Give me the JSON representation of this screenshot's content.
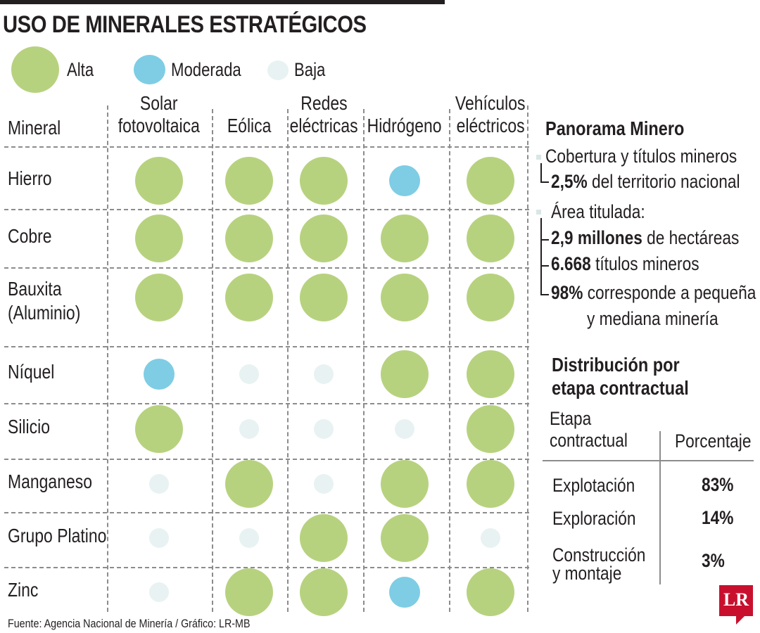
{
  "title": "USO DE MINERALES ESTRATÉGICOS",
  "colors": {
    "alta": "#b7d27f",
    "moderada": "#7ecde4",
    "baja": "#e8f2f2",
    "text": "#231f20",
    "logo": "#c8102e"
  },
  "legend": [
    {
      "level": "alta",
      "label": "Alta"
    },
    {
      "level": "moderada",
      "label": "Moderada"
    },
    {
      "level": "baja",
      "label": "Baja"
    }
  ],
  "table": {
    "mineral_header": "Mineral",
    "columns": [
      {
        "line1": "Solar",
        "line2": "fotovoltaica"
      },
      {
        "line1": "",
        "line2": "Eólica"
      },
      {
        "line1": "Redes",
        "line2": "eléctricas"
      },
      {
        "line1": "",
        "line2": "Hidrógeno"
      },
      {
        "line1": "Vehículos",
        "line2": "eléctricos"
      }
    ],
    "rows": [
      {
        "mineral": "Hierro",
        "mineral2": "",
        "levels": [
          "alta",
          "alta",
          "alta",
          "moderada",
          "alta"
        ]
      },
      {
        "mineral": "Cobre",
        "mineral2": "",
        "levels": [
          "alta",
          "alta",
          "alta",
          "alta",
          "alta"
        ]
      },
      {
        "mineral": "Bauxita",
        "mineral2": "(Aluminio)",
        "levels": [
          "alta",
          "alta",
          "alta",
          "alta",
          "alta"
        ]
      },
      {
        "mineral": "Níquel",
        "mineral2": "",
        "levels": [
          "moderada",
          "baja",
          "baja",
          "alta",
          "alta"
        ]
      },
      {
        "mineral": "Silicio",
        "mineral2": "",
        "levels": [
          "alta",
          "baja",
          "baja",
          "baja",
          "alta"
        ]
      },
      {
        "mineral": "Manganeso",
        "mineral2": "",
        "levels": [
          "baja",
          "alta",
          "baja",
          "alta",
          "alta"
        ]
      },
      {
        "mineral": "Grupo Platino",
        "mineral2": "",
        "levels": [
          "baja",
          "baja",
          "alta",
          "alta",
          "baja"
        ]
      },
      {
        "mineral": "Zinc",
        "mineral2": "",
        "levels": [
          "baja",
          "alta",
          "alta",
          "moderada",
          "alta"
        ]
      }
    ]
  },
  "panorama": {
    "title": "Panorama Minero",
    "cobertura_label": "Cobertura y títulos mineros",
    "cobertura_value": "2,5%",
    "cobertura_rest": "del territorio nacional",
    "area_label": "Área titulada:",
    "hectareas_value": "2,9 millones",
    "hectareas_rest": "de hectáreas",
    "titulos_value": "6.668",
    "titulos_rest": "títulos mineros",
    "pequena_value": "98%",
    "pequena_rest": "corresponde a pequeña",
    "pequena_rest2": "y mediana minería"
  },
  "distribution": {
    "title_line1": "Distribución por",
    "title_line2": "etapa contractual",
    "header_stage_line1": "Etapa",
    "header_stage_line2": "contractual",
    "header_pct": "Porcentaje",
    "rows": [
      {
        "stage": "Explotación",
        "stage2": "",
        "pct": "83%"
      },
      {
        "stage": "Exploración",
        "stage2": "",
        "pct": "14%"
      },
      {
        "stage": "Construcción",
        "stage2": "y montaje",
        "pct": "3%"
      }
    ]
  },
  "source": "Fuente: Agencia Nacional de Minería / Gráfico: LR-MB",
  "logo_text": "LR"
}
